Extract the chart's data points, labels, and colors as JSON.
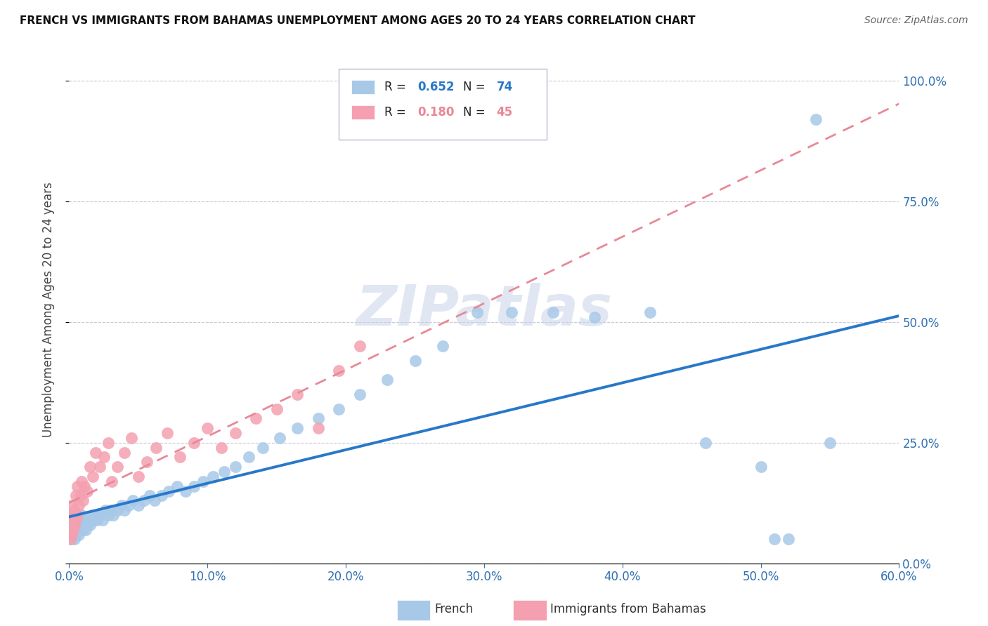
{
  "title": "FRENCH VS IMMIGRANTS FROM BAHAMAS UNEMPLOYMENT AMONG AGES 20 TO 24 YEARS CORRELATION CHART",
  "source": "Source: ZipAtlas.com",
  "ylabel": "Unemployment Among Ages 20 to 24 years",
  "xlim": [
    0.0,
    0.6
  ],
  "ylim": [
    0.0,
    1.05
  ],
  "french_R": 0.652,
  "french_N": 74,
  "bahamas_R": 0.18,
  "bahamas_N": 45,
  "french_color": "#a8c8e8",
  "bahamas_color": "#f4a0b0",
  "french_line_color": "#2878c8",
  "bahamas_line_color": "#e88898",
  "watermark": "ZIPatlas",
  "french_x": [
    0.001,
    0.002,
    0.002,
    0.003,
    0.003,
    0.004,
    0.004,
    0.005,
    0.005,
    0.006,
    0.006,
    0.007,
    0.007,
    0.008,
    0.008,
    0.009,
    0.009,
    0.01,
    0.01,
    0.011,
    0.012,
    0.013,
    0.014,
    0.015,
    0.016,
    0.017,
    0.018,
    0.019,
    0.02,
    0.022,
    0.024,
    0.026,
    0.028,
    0.03,
    0.032,
    0.035,
    0.038,
    0.04,
    0.043,
    0.046,
    0.05,
    0.054,
    0.058,
    0.062,
    0.067,
    0.072,
    0.078,
    0.084,
    0.09,
    0.097,
    0.104,
    0.112,
    0.12,
    0.13,
    0.14,
    0.152,
    0.165,
    0.18,
    0.195,
    0.21,
    0.23,
    0.25,
    0.27,
    0.295,
    0.32,
    0.35,
    0.38,
    0.42,
    0.46,
    0.5,
    0.51,
    0.52,
    0.54,
    0.55
  ],
  "french_y": [
    0.06,
    0.05,
    0.07,
    0.06,
    0.08,
    0.05,
    0.07,
    0.06,
    0.08,
    0.07,
    0.09,
    0.06,
    0.08,
    0.07,
    0.09,
    0.08,
    0.1,
    0.07,
    0.09,
    0.08,
    0.07,
    0.08,
    0.09,
    0.08,
    0.09,
    0.1,
    0.09,
    0.1,
    0.09,
    0.1,
    0.09,
    0.11,
    0.1,
    0.11,
    0.1,
    0.11,
    0.12,
    0.11,
    0.12,
    0.13,
    0.12,
    0.13,
    0.14,
    0.13,
    0.14,
    0.15,
    0.16,
    0.15,
    0.16,
    0.17,
    0.18,
    0.19,
    0.2,
    0.22,
    0.24,
    0.26,
    0.28,
    0.3,
    0.32,
    0.35,
    0.38,
    0.42,
    0.45,
    0.52,
    0.52,
    0.52,
    0.51,
    0.52,
    0.25,
    0.2,
    0.05,
    0.05,
    0.92,
    0.25
  ],
  "bahamas_x": [
    0.001,
    0.001,
    0.001,
    0.002,
    0.002,
    0.002,
    0.003,
    0.003,
    0.004,
    0.004,
    0.005,
    0.005,
    0.006,
    0.006,
    0.007,
    0.008,
    0.009,
    0.01,
    0.011,
    0.013,
    0.015,
    0.017,
    0.019,
    0.022,
    0.025,
    0.028,
    0.031,
    0.035,
    0.04,
    0.045,
    0.05,
    0.056,
    0.063,
    0.071,
    0.08,
    0.09,
    0.1,
    0.11,
    0.12,
    0.135,
    0.15,
    0.165,
    0.18,
    0.195,
    0.21
  ],
  "bahamas_y": [
    0.05,
    0.07,
    0.1,
    0.06,
    0.09,
    0.12,
    0.07,
    0.1,
    0.08,
    0.11,
    0.09,
    0.14,
    0.1,
    0.16,
    0.12,
    0.14,
    0.17,
    0.13,
    0.16,
    0.15,
    0.2,
    0.18,
    0.23,
    0.2,
    0.22,
    0.25,
    0.17,
    0.2,
    0.23,
    0.26,
    0.18,
    0.21,
    0.24,
    0.27,
    0.22,
    0.25,
    0.28,
    0.24,
    0.27,
    0.3,
    0.32,
    0.35,
    0.28,
    0.4,
    0.45
  ]
}
